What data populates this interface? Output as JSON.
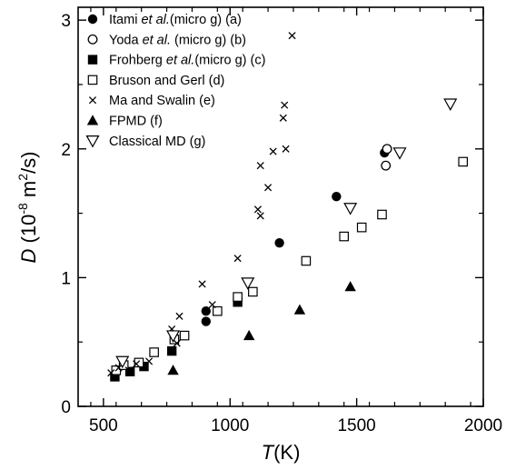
{
  "chart_data": {
    "type": "scatter",
    "title": "",
    "xlabel": {
      "symbol": "T",
      "unit": "(K)"
    },
    "ylabel": {
      "symbol": "D",
      "unit_parts": [
        "(10",
        "-8",
        " m",
        "2",
        "/s)"
      ]
    },
    "xlim": [
      400,
      2000
    ],
    "ylim": [
      0,
      3.1
    ],
    "x_ticks": [
      500,
      1000,
      1500,
      2000
    ],
    "x_tick_labels": [
      "500",
      "1000",
      "1500",
      "2000"
    ],
    "y_ticks": [
      0,
      1,
      2,
      3
    ],
    "y_tick_labels": [
      "0",
      "1",
      "2",
      "3"
    ],
    "grid": false,
    "legend_position": "top-left",
    "series": [
      {
        "name": "Itami et al.(micro g) (a)",
        "label_parts": [
          [
            "Itami ",
            "n"
          ],
          [
            "et al.",
            "i"
          ],
          [
            "(micro g) (a)",
            "n"
          ]
        ],
        "marker": "filled-circle",
        "points": [
          [
            905,
            0.66
          ],
          [
            905,
            0.74
          ],
          [
            1195,
            1.27
          ],
          [
            1420,
            1.63
          ],
          [
            1610,
            1.97
          ]
        ]
      },
      {
        "name": "Yoda et al. (micro g) (b)",
        "label_parts": [
          [
            "Yoda ",
            "n"
          ],
          [
            "et al.",
            "i"
          ],
          [
            " (micro g) (b)",
            "n"
          ]
        ],
        "marker": "open-circle",
        "points": [
          [
            1615,
            1.87
          ],
          [
            1620,
            2.0
          ]
        ]
      },
      {
        "name": "Frohberg et al.(micro g) (c)",
        "label_parts": [
          [
            "Frohberg ",
            "n"
          ],
          [
            "et al.",
            "i"
          ],
          [
            "(micro g) (c)",
            "n"
          ]
        ],
        "marker": "filled-square",
        "points": [
          [
            545,
            0.23
          ],
          [
            605,
            0.27
          ],
          [
            660,
            0.31
          ],
          [
            770,
            0.43
          ],
          [
            1030,
            0.81
          ]
        ]
      },
      {
        "name": "Bruson and Gerl (d)",
        "label_parts": [
          [
            "Bruson and Gerl (d)",
            "n"
          ]
        ],
        "marker": "open-square",
        "points": [
          [
            550,
            0.28
          ],
          [
            580,
            0.32
          ],
          [
            640,
            0.34
          ],
          [
            700,
            0.42
          ],
          [
            780,
            0.52
          ],
          [
            820,
            0.55
          ],
          [
            950,
            0.74
          ],
          [
            1030,
            0.85
          ],
          [
            1090,
            0.89
          ],
          [
            1300,
            1.13
          ],
          [
            1450,
            1.32
          ],
          [
            1520,
            1.39
          ],
          [
            1600,
            1.49
          ],
          [
            1920,
            1.9
          ]
        ]
      },
      {
        "name": "Ma and Swalin (e)",
        "label_parts": [
          [
            "Ma and Swalin (e)",
            "n"
          ]
        ],
        "marker": "cross",
        "points": [
          [
            530,
            0.26
          ],
          [
            560,
            0.3
          ],
          [
            600,
            0.28
          ],
          [
            630,
            0.33
          ],
          [
            680,
            0.35
          ],
          [
            770,
            0.6
          ],
          [
            790,
            0.49
          ],
          [
            800,
            0.7
          ],
          [
            890,
            0.95
          ],
          [
            930,
            0.79
          ],
          [
            1030,
            1.15
          ],
          [
            1110,
            1.53
          ],
          [
            1120,
            1.48
          ],
          [
            1120,
            1.87
          ],
          [
            1150,
            1.7
          ],
          [
            1170,
            1.98
          ],
          [
            1210,
            2.24
          ],
          [
            1215,
            2.34
          ],
          [
            1220,
            2.0
          ],
          [
            1245,
            2.88
          ]
        ]
      },
      {
        "name": "FPMD (f)",
        "label_parts": [
          [
            "FPMD (f)",
            "n"
          ]
        ],
        "marker": "filled-triangle",
        "points": [
          [
            775,
            0.28
          ],
          [
            1075,
            0.55
          ],
          [
            1275,
            0.75
          ],
          [
            1475,
            0.93
          ]
        ]
      },
      {
        "name": "Classical MD (g)",
        "label_parts": [
          [
            "Classical MD (g)",
            "n"
          ]
        ],
        "marker": "open-triangle-down",
        "points": [
          [
            575,
            0.35
          ],
          [
            775,
            0.55
          ],
          [
            1070,
            0.96
          ],
          [
            1475,
            1.54
          ],
          [
            1670,
            1.97
          ],
          [
            1870,
            2.35
          ]
        ]
      }
    ]
  }
}
